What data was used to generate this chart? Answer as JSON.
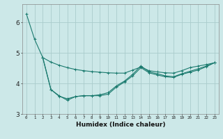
{
  "title": "",
  "xlabel": "Humidex (Indice chaleur)",
  "background_color": "#cce8e8",
  "plot_bg_color": "#cce8e8",
  "grid_color": "#aacccc",
  "line_color": "#1a7a6e",
  "xlim": [
    -0.5,
    23.5
  ],
  "ylim": [
    3.0,
    6.6
  ],
  "yticks": [
    3,
    4,
    5,
    6
  ],
  "xticks": [
    0,
    1,
    2,
    3,
    4,
    5,
    6,
    7,
    8,
    9,
    10,
    11,
    12,
    13,
    14,
    15,
    16,
    17,
    18,
    19,
    20,
    21,
    22,
    23
  ],
  "series1_x": [
    0,
    1,
    2,
    3,
    4,
    5,
    6,
    7,
    8,
    9,
    10,
    11,
    12,
    13,
    14,
    15,
    16,
    17,
    18,
    19,
    20,
    21,
    22,
    23
  ],
  "series1_y": [
    6.28,
    5.45,
    4.85,
    4.7,
    4.6,
    4.52,
    4.46,
    4.42,
    4.39,
    4.37,
    4.35,
    4.34,
    4.34,
    4.44,
    4.54,
    4.42,
    4.38,
    4.35,
    4.34,
    4.42,
    4.52,
    4.57,
    4.62,
    4.68
  ],
  "series2_x": [
    2,
    3,
    4,
    5,
    6,
    7,
    8,
    9,
    10,
    11,
    12,
    13,
    14,
    15,
    16,
    17,
    18,
    19,
    20,
    21,
    22,
    23
  ],
  "series2_y": [
    4.85,
    3.8,
    3.6,
    3.45,
    3.57,
    3.6,
    3.6,
    3.63,
    3.7,
    3.92,
    4.08,
    4.3,
    4.58,
    4.38,
    4.32,
    4.25,
    4.22,
    4.32,
    4.4,
    4.48,
    4.57,
    4.68
  ],
  "series3_x": [
    2,
    3,
    4,
    5,
    6,
    7,
    8,
    9,
    10,
    11,
    12,
    13,
    14,
    15,
    16,
    17,
    18,
    19,
    20,
    21,
    22,
    23
  ],
  "series3_y": [
    4.85,
    3.8,
    3.58,
    3.5,
    3.57,
    3.6,
    3.6,
    3.6,
    3.65,
    3.88,
    4.05,
    4.25,
    4.52,
    4.35,
    4.28,
    4.22,
    4.2,
    4.3,
    4.37,
    4.44,
    4.55,
    4.68
  ]
}
